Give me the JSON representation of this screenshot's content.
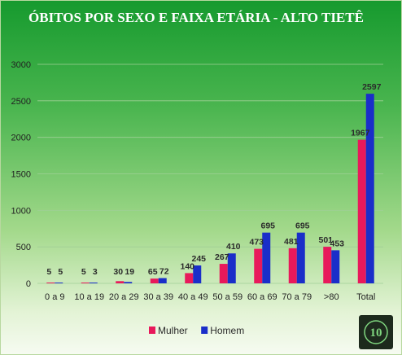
{
  "chart_data": {
    "type": "bar",
    "title": "ÓBITOS POR SEXO E FAIXA ETÁRIA - ALTO TIETÊ",
    "categories": [
      "0 a 9",
      "10 a 19",
      "20 a 29",
      "30 a 39",
      "40 a 49",
      "50 a 59",
      "60 a 69",
      "70 a 79",
      ">80",
      "Total"
    ],
    "series": [
      {
        "name": "Mulher",
        "color": "#e8195b",
        "values": [
          5,
          5,
          30,
          65,
          140,
          267,
          473,
          481,
          501,
          1967
        ]
      },
      {
        "name": "Homem",
        "color": "#1a2ec9",
        "values": [
          5,
          3,
          19,
          72,
          245,
          410,
          695,
          695,
          453,
          2597
        ]
      }
    ],
    "yticks": [
      0,
      500,
      1000,
      1500,
      2000,
      2500,
      3000
    ],
    "ylim": [
      0,
      3000
    ],
    "grid": true,
    "legend_position": "bottom"
  },
  "logo": {
    "icon": "logo-10-anos-icon",
    "text": "10",
    "color": "#7fd67f"
  }
}
